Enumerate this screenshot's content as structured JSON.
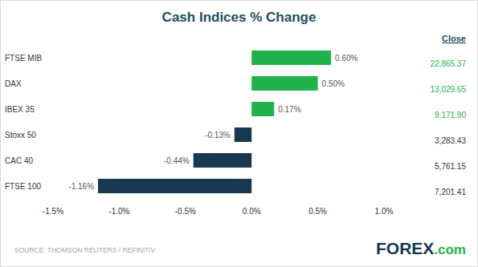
{
  "chart_data": {
    "type": "bar",
    "title": "Cash Indices % Change",
    "orientation": "horizontal",
    "categories": [
      "FTSE MIB",
      "DAX",
      "IBEX 35",
      "Stoxx 50",
      "CAC 40",
      "FTSE 100"
    ],
    "values": [
      0.6,
      0.5,
      0.17,
      -0.13,
      -0.44,
      -1.16
    ],
    "value_labels": [
      "0.60%",
      "0.50%",
      "0.17%",
      "-0.13%",
      "-0.44%",
      "-1.16%"
    ],
    "colors": [
      "#22b24c",
      "#22b24c",
      "#22b24c",
      "#17384f",
      "#17384f",
      "#17384f"
    ],
    "data_labels": true,
    "grid": false,
    "xlim": [
      -1.5,
      1.0
    ],
    "xticks": [
      {
        "value": -1.5,
        "label": "-1.5%"
      },
      {
        "value": -1.0,
        "label": "-1.0%"
      },
      {
        "value": -0.5,
        "label": "-0.5%"
      },
      {
        "value": 0.0,
        "label": "0.0%"
      },
      {
        "value": 0.5,
        "label": "0.5%"
      },
      {
        "value": 1.0,
        "label": "1.0%"
      }
    ],
    "close": {
      "title": "Close",
      "labels": [
        "22,865.37",
        "13,029.65",
        "9,171.90",
        "3,283.43",
        "5,761.15",
        "7,201.41"
      ]
    },
    "source": "SOURCE: THOMSON REUTERS / REFINITIV",
    "logo": {
      "main": "FOREX",
      "suffix": ".com"
    }
  }
}
